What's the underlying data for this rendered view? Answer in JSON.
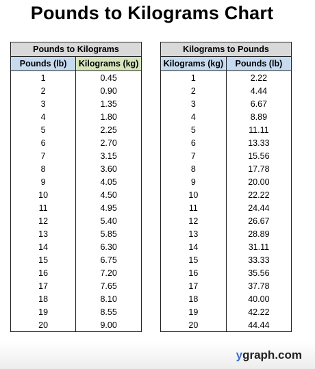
{
  "title": "Pounds to Kilograms Chart",
  "brand": {
    "prefix": "y",
    "rest": "graph.com"
  },
  "lb_to_kg": {
    "heading": "Pounds to Kilograms",
    "col1": "Pounds (lb)",
    "col2": "Kilograms (kg)",
    "rows": [
      [
        "1",
        "0.45"
      ],
      [
        "2",
        "0.90"
      ],
      [
        "3",
        "1.35"
      ],
      [
        "4",
        "1.80"
      ],
      [
        "5",
        "2.25"
      ],
      [
        "6",
        "2.70"
      ],
      [
        "7",
        "3.15"
      ],
      [
        "8",
        "3.60"
      ],
      [
        "9",
        "4.05"
      ],
      [
        "10",
        "4.50"
      ],
      [
        "11",
        "4.95"
      ],
      [
        "12",
        "5.40"
      ],
      [
        "13",
        "5.85"
      ],
      [
        "14",
        "6.30"
      ],
      [
        "15",
        "6.75"
      ],
      [
        "16",
        "7.20"
      ],
      [
        "17",
        "7.65"
      ],
      [
        "18",
        "8.10"
      ],
      [
        "19",
        "8.55"
      ],
      [
        "20",
        "9.00"
      ]
    ]
  },
  "kg_to_lb": {
    "heading": "Kilograms to Pounds",
    "col1": "Kilograms (kg)",
    "col2": "Pounds (lb)",
    "rows": [
      [
        "1",
        "2.22"
      ],
      [
        "2",
        "4.44"
      ],
      [
        "3",
        "6.67"
      ],
      [
        "4",
        "8.89"
      ],
      [
        "5",
        "11.11"
      ],
      [
        "6",
        "13.33"
      ],
      [
        "7",
        "15.56"
      ],
      [
        "8",
        "17.78"
      ],
      [
        "9",
        "20.00"
      ],
      [
        "10",
        "22.22"
      ],
      [
        "11",
        "24.44"
      ],
      [
        "12",
        "26.67"
      ],
      [
        "13",
        "28.89"
      ],
      [
        "14",
        "31.11"
      ],
      [
        "15",
        "33.33"
      ],
      [
        "16",
        "35.56"
      ],
      [
        "17",
        "37.78"
      ],
      [
        "18",
        "40.00"
      ],
      [
        "19",
        "42.22"
      ],
      [
        "20",
        "44.44"
      ]
    ]
  }
}
